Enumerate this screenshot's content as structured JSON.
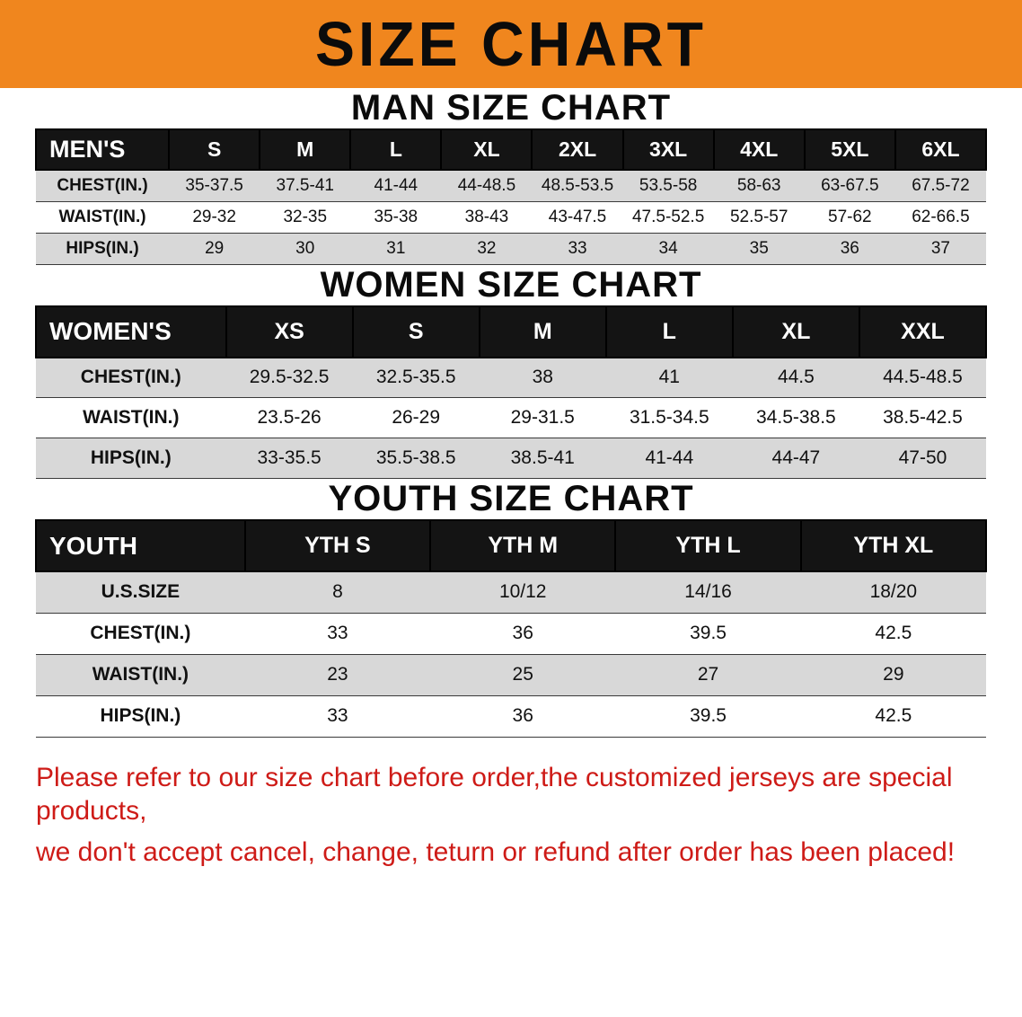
{
  "banner": {
    "title": "SIZE CHART"
  },
  "colors": {
    "banner_bg": "#f0861e",
    "header_bg": "#141414",
    "row_alt": "#d8d8d8",
    "disclaimer_red": "#ce1b17"
  },
  "sections": [
    {
      "id": "men",
      "heading": "MAN SIZE CHART",
      "table": {
        "header": [
          "MEN'S",
          "S",
          "M",
          "L",
          "XL",
          "2XL",
          "3XL",
          "4XL",
          "5XL",
          "6XL"
        ],
        "rows": [
          [
            "CHEST(IN.)",
            "35-37.5",
            "37.5-41",
            "41-44",
            "44-48.5",
            "48.5-53.5",
            "53.5-58",
            "58-63",
            "63-67.5",
            "67.5-72"
          ],
          [
            "WAIST(IN.)",
            "29-32",
            "32-35",
            "35-38",
            "38-43",
            "43-47.5",
            "47.5-52.5",
            "52.5-57",
            "57-62",
            "62-66.5"
          ],
          [
            "HIPS(IN.)",
            "29",
            "30",
            "31",
            "32",
            "33",
            "34",
            "35",
            "36",
            "37"
          ]
        ]
      }
    },
    {
      "id": "women",
      "heading": "WOMEN SIZE CHART",
      "table": {
        "header": [
          "WOMEN'S",
          "XS",
          "S",
          "M",
          "L",
          "XL",
          "XXL"
        ],
        "rows": [
          [
            "CHEST(IN.)",
            "29.5-32.5",
            "32.5-35.5",
            "38",
            "41",
            "44.5",
            "44.5-48.5"
          ],
          [
            "WAIST(IN.)",
            "23.5-26",
            "26-29",
            "29-31.5",
            "31.5-34.5",
            "34.5-38.5",
            "38.5-42.5"
          ],
          [
            "HIPS(IN.)",
            "33-35.5",
            "35.5-38.5",
            "38.5-41",
            "41-44",
            "44-47",
            "47-50"
          ]
        ]
      }
    },
    {
      "id": "youth",
      "heading": "YOUTH SIZE CHART",
      "table": {
        "header": [
          "YOUTH",
          "YTH S",
          "YTH M",
          "YTH L",
          "YTH XL"
        ],
        "rows": [
          [
            "U.S.SIZE",
            "8",
            "10/12",
            "14/16",
            "18/20"
          ],
          [
            "CHEST(IN.)",
            "33",
            "36",
            "39.5",
            "42.5"
          ],
          [
            "WAIST(IN.)",
            "23",
            "25",
            "27",
            "29"
          ],
          [
            "HIPS(IN.)",
            "33",
            "36",
            "39.5",
            "42.5"
          ]
        ]
      }
    }
  ],
  "disclaimer": {
    "line1": "Please refer to our size chart before order,the customized jerseys are special products,",
    "line2": "we don't accept cancel, change, teturn or refund after order has been placed!"
  }
}
